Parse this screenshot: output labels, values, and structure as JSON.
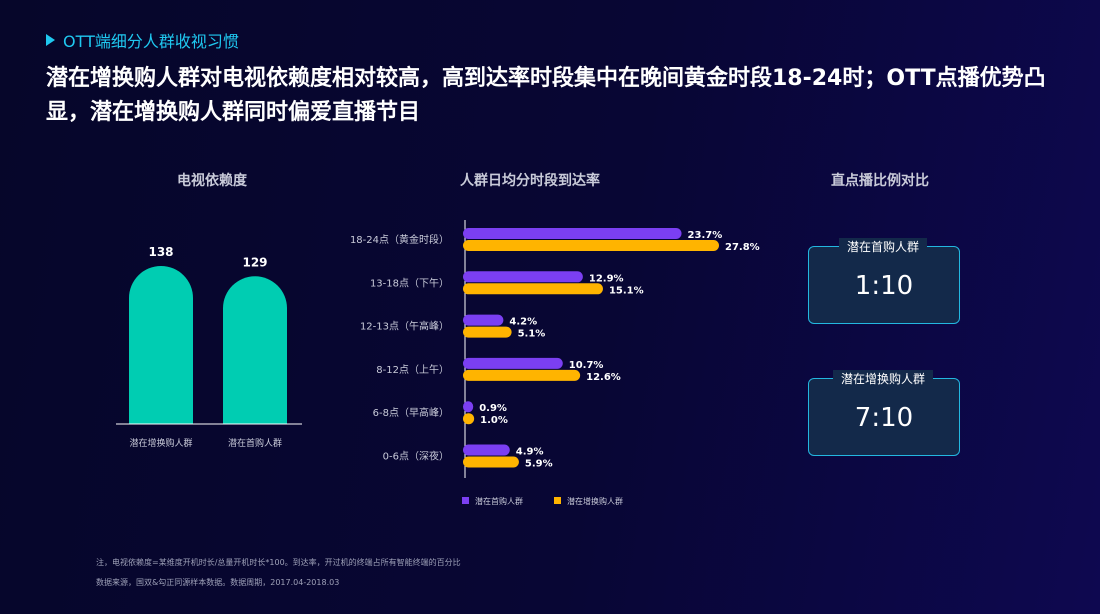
{
  "section_tag": "OTT端细分人群收视习惯",
  "headline": "潜在增换购人群对电视依赖度相对较高，高到达率时段集中在晚间黄金时段18-24时；OTT点播优势凸显，潜在增换购人群同时偏爱直播节目",
  "colors": {
    "accent": "#1fc8f0",
    "teal": "#00cdb2",
    "purple": "#7b3ff2",
    "yellow": "#ffb400"
  },
  "chart_data": [
    {
      "type": "bar",
      "title": "电视依赖度",
      "categories": [
        "潜在增换购人群",
        "潜在首购人群"
      ],
      "values": [
        138,
        129
      ],
      "ylim": [
        0,
        160
      ]
    },
    {
      "type": "bar",
      "orientation": "horizontal",
      "title": "人群日均分时段到达率",
      "categories": [
        "18-24点（黄金时段）",
        "13-18点（下午）",
        "12-13点（午高峰）",
        "8-12点（上午）",
        "6-8点（早高峰）",
        "0-6点（深夜）"
      ],
      "series": [
        {
          "name": "潜在首购人群",
          "values": [
            23.7,
            12.9,
            4.2,
            10.7,
            0.9,
            4.9
          ],
          "labels": [
            "23.7%",
            "12.9%",
            "4.2%",
            "10.7%",
            "0.9%",
            "4.9%"
          ]
        },
        {
          "name": "潜在增换购人群",
          "values": [
            27.8,
            15.1,
            5.1,
            12.6,
            1.0,
            5.9
          ],
          "labels": [
            "27.8%",
            "15.1%",
            "5.1%",
            "12.6%",
            "1.0%",
            "5.9%"
          ]
        }
      ],
      "xlim": [
        0,
        30
      ],
      "legend": "bottom"
    }
  ],
  "ratio_panel": {
    "title": "直点播比例对比",
    "items": [
      {
        "label": "潜在首购人群",
        "value": "1:10"
      },
      {
        "label": "潜在增换购人群",
        "value": "7:10"
      }
    ]
  },
  "notes": [
    "注，电视依赖度=某维度开机时长/总量开机时长*100。到达率，开过机的终端占所有智能终端的百分比",
    "数据来源，国双&勾正同源样本数据。数据周期，2017.04-2018.03"
  ]
}
